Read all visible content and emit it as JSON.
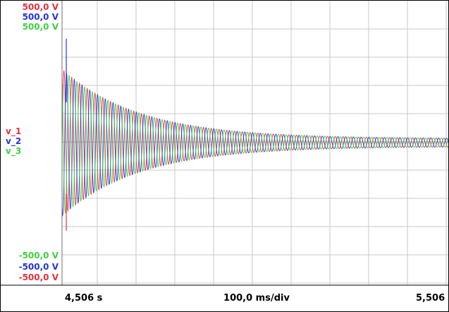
{
  "chart_data": {
    "type": "line",
    "channels": [
      {
        "name": "v_1",
        "color": "#e8303a",
        "scale_top": "500,0 V",
        "scale_bottom": "-500,0 V"
      },
      {
        "name": "v_2",
        "color": "#2434d8",
        "scale_top": "500,0 V",
        "scale_bottom": "-500,0 V"
      },
      {
        "name": "v_3",
        "color": "#3cd23c",
        "scale_top": "500,0 V",
        "scale_bottom": "-500,0 V"
      }
    ],
    "y_range_volts": [
      -500,
      500
    ],
    "x_start": "4,506 s",
    "x_end": "5,506 s",
    "x_division": "100,0 ms/div",
    "x_range_seconds": [
      4.506,
      5.506
    ],
    "grid": true,
    "signal": {
      "onset_time_s": 4.506,
      "initial_peak_v": 325,
      "final_peak_v": 18,
      "decay_time_constant_s": 0.2,
      "frequency_hz": 50,
      "phase_offsets_deg": [
        0,
        -120,
        120
      ],
      "spike_v": 460
    }
  }
}
